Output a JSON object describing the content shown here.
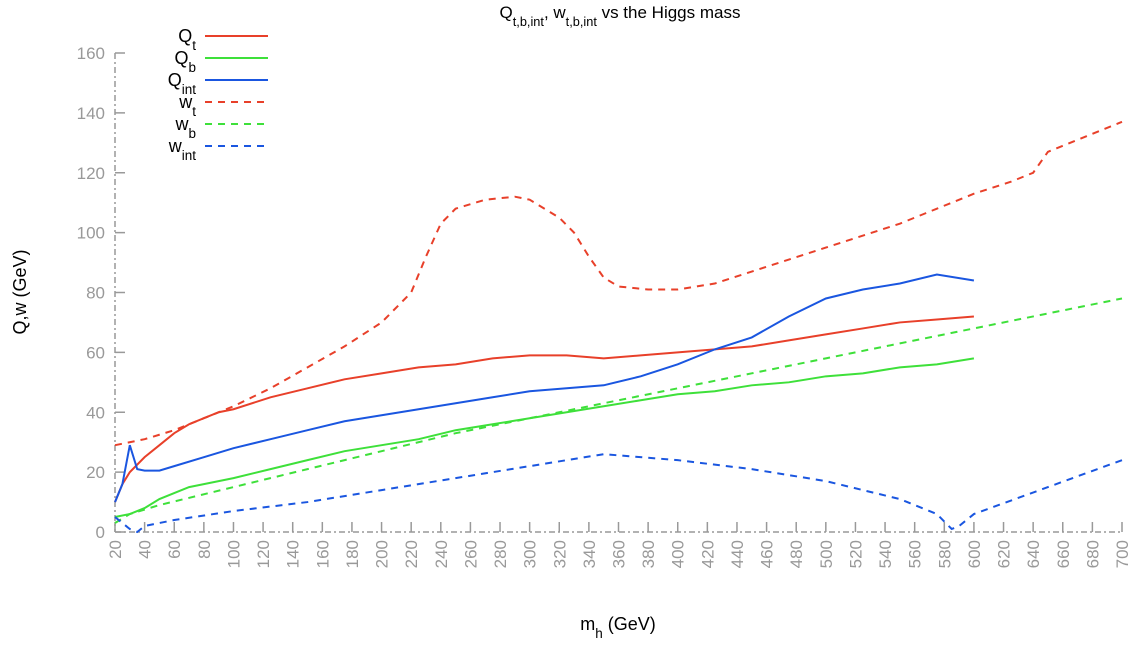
{
  "chart_data": {
    "type": "line",
    "title": [
      {
        "text": "Q"
      },
      {
        "text": "t,b,int",
        "sub": true
      },
      {
        "text": ", w"
      },
      {
        "text": "t,b,int",
        "sub": true
      },
      {
        "text": " vs the Higgs mass"
      }
    ],
    "xlabel": [
      {
        "text": "m"
      },
      {
        "text": "h",
        "sub": true
      },
      {
        "text": " (GeV)"
      }
    ],
    "ylabel": "Q,w (GeV)",
    "xlim": [
      20,
      700
    ],
    "ylim": [
      0,
      160
    ],
    "xticks": [
      20,
      40,
      60,
      80,
      100,
      120,
      140,
      160,
      180,
      200,
      220,
      240,
      260,
      280,
      300,
      320,
      340,
      360,
      380,
      400,
      420,
      440,
      460,
      480,
      500,
      520,
      540,
      560,
      580,
      600,
      620,
      640,
      660,
      680,
      700
    ],
    "yticks": [
      0,
      20,
      40,
      60,
      80,
      100,
      120,
      140,
      160
    ],
    "legend": "upper left",
    "series": [
      {
        "name": [
          {
            "text": "Q"
          },
          {
            "text": "t",
            "sub": true
          }
        ],
        "color": "#e8402a",
        "dash": false,
        "x": [
          20,
          25,
          30,
          40,
          50,
          60,
          70,
          80,
          90,
          100,
          125,
          150,
          175,
          200,
          225,
          250,
          275,
          300,
          325,
          350,
          375,
          400,
          425,
          450,
          475,
          500,
          525,
          550,
          575,
          600
        ],
        "values": [
          10,
          16,
          20,
          25,
          29,
          33,
          36,
          38,
          40,
          41,
          45,
          48,
          51,
          53,
          55,
          56,
          58,
          59,
          59,
          58,
          59,
          60,
          61,
          62,
          64,
          66,
          68,
          70,
          71,
          72
        ]
      },
      {
        "name": [
          {
            "text": "Q"
          },
          {
            "text": "b",
            "sub": true
          }
        ],
        "color": "#3ee03a",
        "dash": false,
        "x": [
          20,
          30,
          40,
          50,
          60,
          70,
          80,
          90,
          100,
          125,
          150,
          175,
          200,
          225,
          250,
          275,
          300,
          325,
          350,
          375,
          400,
          425,
          450,
          475,
          500,
          525,
          550,
          575,
          600
        ],
        "values": [
          5,
          6,
          8,
          11,
          13,
          15,
          16,
          17,
          18,
          21,
          24,
          27,
          29,
          31,
          34,
          36,
          38,
          40,
          42,
          44,
          46,
          47,
          49,
          50,
          52,
          53,
          55,
          56,
          58
        ]
      },
      {
        "name": [
          {
            "text": "Q"
          },
          {
            "text": "int",
            "sub": true
          }
        ],
        "color": "#1a56e0",
        "dash": false,
        "x": [
          20,
          25,
          30,
          35,
          40,
          50,
          60,
          80,
          100,
          125,
          150,
          175,
          200,
          225,
          250,
          275,
          300,
          325,
          350,
          375,
          400,
          425,
          450,
          475,
          500,
          525,
          550,
          575,
          600
        ],
        "values": [
          10,
          16,
          29,
          21,
          20.5,
          20.5,
          22,
          25,
          28,
          31,
          34,
          37,
          39,
          41,
          43,
          45,
          47,
          48,
          49,
          52,
          56,
          61,
          65,
          72,
          78,
          81,
          83,
          86,
          84
        ]
      },
      {
        "name": [
          {
            "text": "w"
          },
          {
            "text": "t",
            "sub": true
          }
        ],
        "color": "#e8402a",
        "dash": true,
        "x": [
          20,
          40,
          60,
          80,
          100,
          125,
          150,
          175,
          200,
          220,
          230,
          240,
          250,
          270,
          290,
          300,
          320,
          330,
          340,
          350,
          360,
          380,
          400,
          425,
          450,
          500,
          550,
          575,
          600,
          625,
          640,
          650,
          700
        ],
        "values": [
          29,
          31,
          34,
          38,
          42,
          48,
          55,
          62,
          70,
          80,
          92,
          103,
          108,
          111,
          112,
          111,
          105,
          100,
          92,
          85,
          82,
          81,
          81,
          83,
          87,
          95,
          103,
          108,
          113,
          117,
          120,
          127,
          137
        ]
      },
      {
        "name": [
          {
            "text": "w"
          },
          {
            "text": "b",
            "sub": true
          }
        ],
        "color": "#3ee03a",
        "dash": true,
        "x": [
          20,
          30,
          50,
          100,
          150,
          200,
          250,
          300,
          350,
          400,
          450,
          500,
          550,
          600,
          650,
          700
        ],
        "values": [
          3,
          6,
          9,
          15,
          21,
          27,
          33,
          38,
          43,
          48,
          53,
          58,
          63,
          68,
          73,
          78
        ]
      },
      {
        "name": [
          {
            "text": "w"
          },
          {
            "text": "int",
            "sub": true
          }
        ],
        "color": "#1a56e0",
        "dash": true,
        "x": [
          20,
          30,
          35,
          40,
          60,
          100,
          150,
          200,
          250,
          300,
          350,
          400,
          450,
          500,
          550,
          575,
          585,
          590,
          600,
          650,
          700
        ],
        "values": [
          5,
          1,
          0,
          2,
          4,
          7,
          10,
          14,
          18,
          22,
          26,
          24,
          21,
          17,
          11,
          6,
          1,
          2,
          6,
          15,
          24
        ]
      }
    ]
  }
}
